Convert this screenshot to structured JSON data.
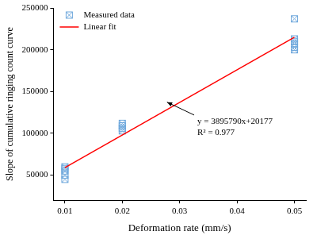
{
  "chart_data": {
    "type": "scatter",
    "x_label": "Deformation rate (mm/s)",
    "y_label": "Slope of cumulative ringing count curve",
    "xlim": [
      0.008,
      0.052
    ],
    "xticks": [
      0.01,
      0.02,
      0.03,
      0.04,
      0.05
    ],
    "ylim": [
      20000,
      250000
    ],
    "yticks": [
      50000,
      100000,
      150000,
      200000,
      250000
    ],
    "grid": false,
    "legend": "upper left",
    "series": [
      {
        "name": "Measured data",
        "type": "scatter",
        "marker": "square_x",
        "color": "#6fa8dc",
        "x": [
          0.01,
          0.01,
          0.01,
          0.01,
          0.01,
          0.02,
          0.02,
          0.02,
          0.02,
          0.05,
          0.05,
          0.05,
          0.05,
          0.05,
          0.05
        ],
        "values": [
          45000,
          50000,
          55000,
          58000,
          60000,
          103000,
          106000,
          109000,
          112000,
          200000,
          203000,
          207000,
          210000,
          213000,
          237000
        ]
      },
      {
        "name": "Linear fit",
        "type": "line",
        "line_style": "solid",
        "color": "#ff0000",
        "x": [
          0.01,
          0.05
        ],
        "values": [
          59000,
          215000
        ]
      }
    ],
    "annotations": [
      {
        "text": "y = 3895790x+20177"
      },
      {
        "text": "R² = 0.977"
      }
    ]
  }
}
